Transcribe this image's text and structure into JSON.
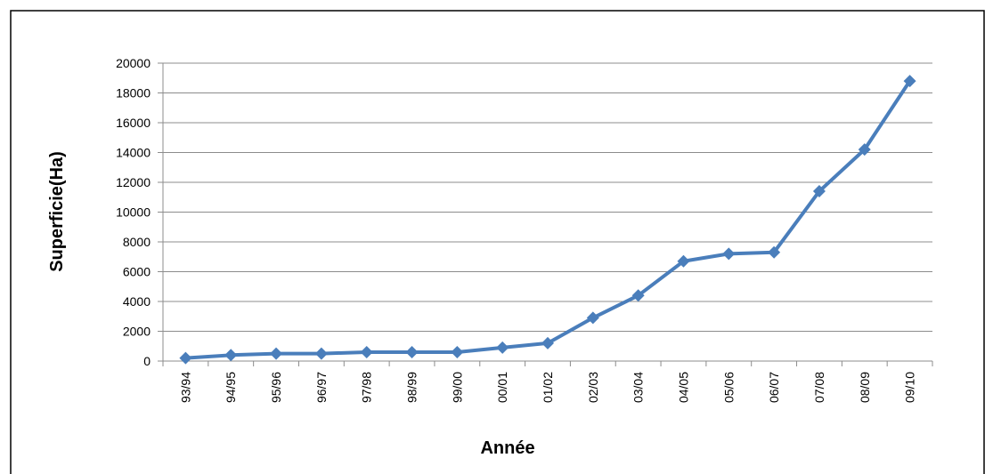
{
  "chart_data": {
    "type": "line",
    "x_label": "Année",
    "y_label": "Superficie(Ha)",
    "categories": [
      "93/94",
      "94/95",
      "95/96",
      "96/97",
      "97/98",
      "98/99",
      "99/00",
      "00/01",
      "01/02",
      "02/03",
      "03/04",
      "04/05",
      "05/06",
      "06/07",
      "07/08",
      "08/09",
      "09/10"
    ],
    "series": [
      {
        "name": "Superficie",
        "color": "#4a7ebb",
        "values": [
          200,
          400,
          500,
          500,
          600,
          600,
          600,
          900,
          1200,
          2900,
          4400,
          6700,
          7200,
          7300,
          11400,
          14200,
          18800
        ]
      }
    ],
    "ylim": [
      0,
      20000
    ],
    "yticks": [
      0,
      2000,
      4000,
      6000,
      8000,
      10000,
      12000,
      14000,
      16000,
      18000,
      20000
    ],
    "grid": true
  }
}
